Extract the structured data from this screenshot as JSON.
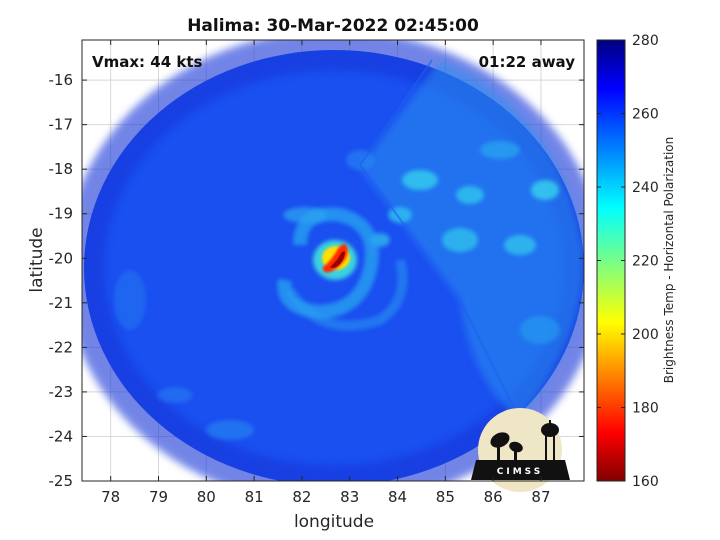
{
  "title": "Halima: 30-Mar-2022 02:45:00",
  "annotations": {
    "vmax": "Vmax: 44 kts",
    "time_away": "01:22 away"
  },
  "axes": {
    "xlabel": "longitude",
    "ylabel": "latitude",
    "xlim": [
      77.4,
      87.9
    ],
    "ylim": [
      -25,
      -15.1
    ],
    "xticks": [
      78,
      79,
      80,
      81,
      82,
      83,
      84,
      85,
      86,
      87
    ],
    "yticks": [
      -16,
      -17,
      -18,
      -19,
      -20,
      -21,
      -22,
      -23,
      -24,
      -25
    ],
    "grid": true
  },
  "colorbar": {
    "label": "Brightness Temp - Horizontal Polarization",
    "range": [
      160,
      280
    ],
    "ticks": [
      280,
      260,
      240,
      220,
      200,
      180,
      160
    ],
    "colormap": "jet"
  },
  "chart_data": {
    "type": "heatmap",
    "title": "Halima: 30-Mar-2022 02:45:00",
    "xlabel": "longitude",
    "ylabel": "latitude",
    "xlim": [
      77.4,
      87.9
    ],
    "ylim": [
      -25,
      -15.1
    ],
    "value_range": [
      160,
      280
    ],
    "value_label": "Brightness Temp - Horizontal Polarization",
    "storm_center": {
      "lon": 82.6,
      "lat": -20.0
    },
    "min_brightness_temp": 165,
    "background_brightness_temp": 262,
    "swath_center": {
      "lon": 82.6,
      "lat": -20.0
    },
    "swath_radius_deg": 5.4
  },
  "logo": {
    "text": "CIMSS",
    "colors": {
      "circle": "#efe6c6",
      "ink": "#111111"
    }
  },
  "colors": {
    "background": "#ffffff",
    "axis": "#262626",
    "grid": "#d8d8d8"
  }
}
